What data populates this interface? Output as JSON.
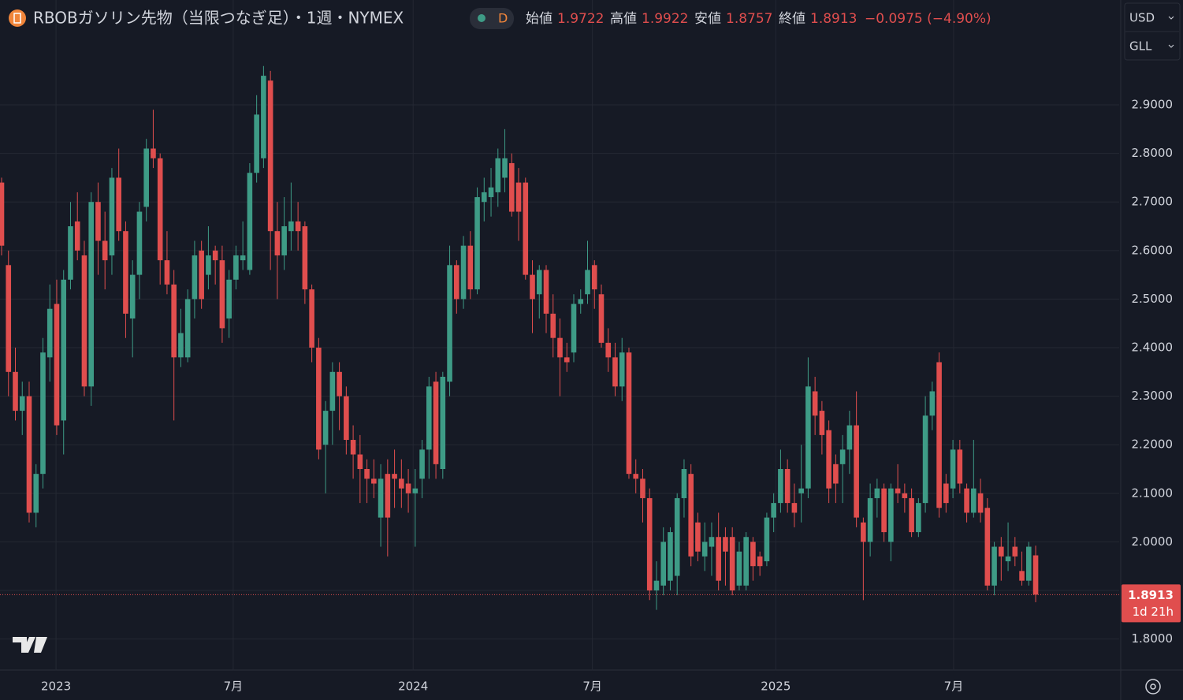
{
  "chart_data": {
    "type": "candlestick",
    "title": "RBOBガソリン先物（当限つなぎ足）・1週・NYMEX",
    "interval_badge": "D",
    "ohlc_names": [
      "始値",
      "高値",
      "安値",
      "終値"
    ],
    "change": "−0.0975 (−4.90%)",
    "currency": "USD",
    "unit": "GLL",
    "countdown": "1d 21h",
    "up_color": "#3e9b86",
    "down_color": "#e04e4e",
    "grid": true,
    "ylim": [
      1.736,
      3.116
    ],
    "yticks": [
      {
        "value": 1.8,
        "label": "1.8000"
      },
      {
        "value": 1.9,
        "label": "1.9000"
      },
      {
        "value": 2.0,
        "label": "2.0000"
      },
      {
        "value": 2.1,
        "label": "2.1000"
      },
      {
        "value": 2.2,
        "label": "2.2000"
      },
      {
        "value": 2.3,
        "label": "2.3000"
      },
      {
        "value": 2.4,
        "label": "2.4000"
      },
      {
        "value": 2.5,
        "label": "2.5000"
      },
      {
        "value": 2.6,
        "label": "2.6000"
      },
      {
        "value": 2.7,
        "label": "2.7000"
      },
      {
        "value": 2.8,
        "label": "2.8000"
      },
      {
        "value": 2.9,
        "label": "2.9000"
      }
    ],
    "xticks": [
      {
        "value": 7.9,
        "label": "2023"
      },
      {
        "value": 33.6,
        "label": "7月"
      },
      {
        "value": 59.7,
        "label": "2024"
      },
      {
        "value": 85.7,
        "label": "7月"
      },
      {
        "value": 112.3,
        "label": "2025"
      },
      {
        "value": 138.1,
        "label": "7月"
      }
    ],
    "open": [
      2.74,
      2.57,
      2.35,
      2.27,
      2.3,
      2.06,
      2.14,
      2.38,
      2.49,
      2.25,
      2.54,
      2.66,
      2.59,
      2.32,
      2.7,
      2.62,
      2.59,
      2.75,
      2.64,
      2.46,
      2.55,
      2.69,
      2.81,
      2.79,
      2.58,
      2.53,
      2.38,
      2.38,
      2.5,
      2.6,
      2.55,
      2.6,
      2.58,
      2.46,
      2.54,
      2.58,
      2.56,
      2.76,
      2.79,
      2.95,
      2.64,
      2.59,
      2.64,
      2.66,
      2.65,
      2.52,
      2.4,
      2.2,
      2.27,
      2.35,
      2.3,
      2.21,
      2.18,
      2.15,
      2.13,
      2.05,
      2.14,
      2.14,
      2.13,
      2.12,
      2.1,
      2.13,
      2.19,
      2.33,
      2.15,
      2.33,
      2.57,
      2.5,
      2.61,
      2.52,
      2.7,
      2.71,
      2.72,
      2.75,
      2.78,
      2.74,
      2.74,
      2.55,
      2.51,
      2.56,
      2.47,
      2.42,
      2.38,
      2.39,
      2.49,
      2.51,
      2.57,
      2.51,
      2.41,
      2.38,
      2.32,
      2.39,
      2.14,
      2.13,
      2.09,
      1.9,
      1.91,
      1.92,
      1.93,
      2.09,
      2.14,
      2.04,
      1.97,
      1.99,
      2.01,
      2.01,
      2.01,
      1.91,
      1.91,
      2.0,
      1.97,
      1.96,
      2.05,
      2.08,
      2.15,
      2.08,
      2.1,
      2.11,
      2.31,
      2.27,
      2.23,
      2.16,
      2.16,
      2.19,
      2.24,
      2.04,
      2.0,
      2.09,
      2.11,
      2.0,
      2.11,
      2.1,
      2.09,
      2.02,
      2.08,
      2.26,
      2.37,
      2.12,
      2.11,
      2.19,
      2.11,
      2.06,
      2.1,
      2.07,
      1.91,
      1.99,
      1.96,
      1.99,
      1.94,
      1.92,
      1.9722
    ],
    "high": [
      2.75,
      2.6,
      2.4,
      2.33,
      2.33,
      2.16,
      2.42,
      2.53,
      2.54,
      2.56,
      2.7,
      2.72,
      2.62,
      2.72,
      2.74,
      2.68,
      2.77,
      2.81,
      2.66,
      2.58,
      2.7,
      2.83,
      2.89,
      2.8,
      2.64,
      2.56,
      2.48,
      2.52,
      2.62,
      2.62,
      2.65,
      2.61,
      2.61,
      2.56,
      2.61,
      2.66,
      2.78,
      2.92,
      2.98,
      2.97,
      2.7,
      2.71,
      2.74,
      2.7,
      2.66,
      2.53,
      2.42,
      2.29,
      2.37,
      2.37,
      2.32,
      2.24,
      2.22,
      2.17,
      2.17,
      2.16,
      2.17,
      2.19,
      2.17,
      2.15,
      2.15,
      2.21,
      2.34,
      2.35,
      2.35,
      2.61,
      2.58,
      2.63,
      2.64,
      2.73,
      2.75,
      2.77,
      2.81,
      2.85,
      2.8,
      2.77,
      2.75,
      2.58,
      2.57,
      2.57,
      2.51,
      2.46,
      2.41,
      2.51,
      2.52,
      2.62,
      2.58,
      2.53,
      2.44,
      2.41,
      2.42,
      2.4,
      2.17,
      2.15,
      2.11,
      1.96,
      2.03,
      2.03,
      2.1,
      2.17,
      2.16,
      2.06,
      2.04,
      2.04,
      2.06,
      2.03,
      2.03,
      2.0,
      2.02,
      2.01,
      1.98,
      2.06,
      2.1,
      2.19,
      2.17,
      2.12,
      2.2,
      2.38,
      2.34,
      2.29,
      2.25,
      2.18,
      2.22,
      2.27,
      2.31,
      2.05,
      2.12,
      2.13,
      2.12,
      2.12,
      2.16,
      2.12,
      2.11,
      2.09,
      2.3,
      2.33,
      2.39,
      2.14,
      2.21,
      2.21,
      2.12,
      2.21,
      2.13,
      2.09,
      2.0,
      2.01,
      2.04,
      2.01,
      1.98,
      2.0,
      1.9922
    ],
    "low": [
      2.59,
      2.3,
      2.25,
      2.22,
      2.04,
      2.03,
      2.11,
      2.33,
      2.22,
      2.18,
      2.52,
      2.58,
      2.3,
      2.28,
      2.55,
      2.52,
      2.55,
      2.62,
      2.42,
      2.38,
      2.5,
      2.66,
      2.77,
      2.53,
      2.51,
      2.25,
      2.36,
      2.37,
      2.46,
      2.48,
      2.52,
      2.53,
      2.41,
      2.42,
      2.52,
      2.56,
      2.55,
      2.74,
      2.77,
      2.56,
      2.5,
      2.56,
      2.6,
      2.6,
      2.49,
      2.37,
      2.17,
      2.1,
      2.2,
      2.23,
      2.18,
      2.13,
      2.08,
      2.08,
      2.09,
      1.99,
      1.97,
      2.07,
      2.07,
      2.06,
      1.99,
      2.09,
      2.13,
      2.13,
      2.13,
      2.3,
      2.47,
      2.48,
      2.5,
      2.51,
      2.66,
      2.67,
      2.69,
      2.72,
      2.67,
      2.62,
      2.54,
      2.43,
      2.46,
      2.43,
      2.38,
      2.3,
      2.35,
      2.37,
      2.47,
      2.49,
      2.48,
      2.4,
      2.35,
      2.3,
      2.29,
      2.13,
      2.1,
      2.04,
      1.88,
      1.86,
      1.89,
      1.9,
      1.89,
      2.05,
      1.95,
      1.96,
      1.94,
      1.93,
      1.9,
      1.91,
      1.89,
      1.9,
      1.9,
      1.92,
      1.93,
      1.95,
      2.02,
      2.06,
      2.06,
      2.03,
      2.04,
      2.09,
      2.22,
      2.18,
      2.08,
      2.08,
      2.08,
      2.14,
      2.03,
      1.88,
      1.97,
      2.05,
      2.0,
      1.96,
      2.08,
      2.06,
      2.01,
      2.01,
      2.06,
      2.23,
      2.05,
      2.06,
      2.09,
      2.1,
      2.04,
      2.05,
      2.04,
      1.9,
      1.89,
      1.92,
      1.94,
      1.95,
      1.91,
      1.91,
      1.8757
    ],
    "close": [
      2.61,
      2.35,
      2.27,
      2.3,
      2.06,
      2.14,
      2.39,
      2.48,
      2.24,
      2.54,
      2.65,
      2.6,
      2.32,
      2.7,
      2.62,
      2.58,
      2.75,
      2.64,
      2.47,
      2.55,
      2.68,
      2.81,
      2.79,
      2.58,
      2.53,
      2.38,
      2.43,
      2.5,
      2.59,
      2.5,
      2.59,
      2.58,
      2.44,
      2.54,
      2.59,
      2.59,
      2.76,
      2.88,
      2.96,
      2.64,
      2.59,
      2.65,
      2.66,
      2.64,
      2.52,
      2.4,
      2.19,
      2.27,
      2.35,
      2.3,
      2.21,
      2.18,
      2.15,
      2.13,
      2.12,
      2.13,
      2.05,
      2.13,
      2.11,
      2.1,
      2.11,
      2.19,
      2.32,
      2.16,
      2.34,
      2.57,
      2.5,
      2.61,
      2.52,
      2.71,
      2.72,
      2.73,
      2.79,
      2.79,
      2.68,
      2.68,
      2.55,
      2.5,
      2.56,
      2.47,
      2.42,
      2.38,
      2.37,
      2.49,
      2.5,
      2.56,
      2.52,
      2.41,
      2.38,
      2.32,
      2.39,
      2.14,
      2.13,
      2.09,
      1.9,
      1.92,
      2.0,
      2.02,
      2.09,
      2.15,
      1.97,
      1.98,
      2.0,
      2.01,
      1.92,
      1.98,
      1.9,
      1.98,
      2.01,
      1.95,
      1.95,
      2.05,
      2.08,
      2.15,
      2.08,
      2.06,
      2.11,
      2.32,
      2.26,
      2.22,
      2.11,
      2.12,
      2.19,
      2.24,
      2.05,
      2.0,
      2.09,
      2.11,
      2.02,
      2.11,
      2.1,
      2.09,
      2.02,
      2.08,
      2.26,
      2.31,
      2.07,
      2.08,
      2.19,
      2.12,
      2.06,
      2.11,
      2.06,
      1.91,
      1.99,
      1.97,
      1.97,
      1.97,
      1.92,
      1.99,
      1.8913
    ]
  }
}
